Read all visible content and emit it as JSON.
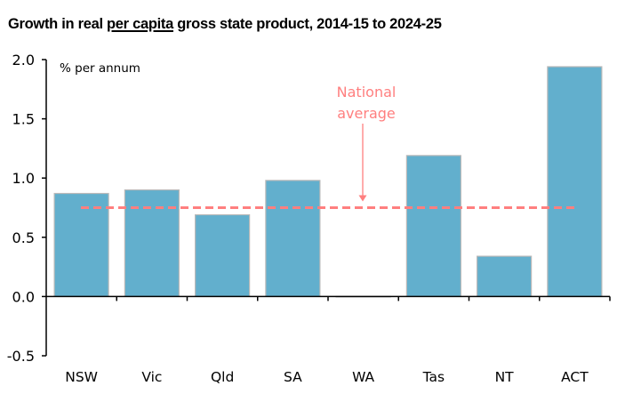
{
  "chart_data": {
    "type": "bar",
    "title_parts": {
      "before": "Growth in real ",
      "underlined": "per capita",
      "after": " gross state product, 2014-15 to 2024-25"
    },
    "title": "Growth in real per capita gross state product, 2014-15 to 2024-25",
    "ylabel": "% per annum",
    "xlabel": "",
    "categories": [
      "NSW",
      "Vic",
      "Qld",
      "SA",
      "WA",
      "Tas",
      "NT",
      "ACT"
    ],
    "values": [
      0.87,
      0.9,
      0.69,
      0.98,
      0.0,
      1.19,
      0.34,
      1.94
    ],
    "ylim": [
      -0.5,
      2.0
    ],
    "yticks": [
      2.0,
      1.5,
      1.0,
      0.5,
      0.0,
      -0.5
    ],
    "ytick_labels": [
      "2.0",
      "1.5",
      "1.0",
      "0.5",
      "0.0",
      "-0.5"
    ],
    "grid": false,
    "reference_line": {
      "name": "National average",
      "value": 0.75,
      "style": "dashed",
      "annotation_lines": [
        "National",
        "average"
      ]
    },
    "colors": {
      "bar": "#62afcd",
      "bar_border": "#b8b8b8",
      "reference": "#ff7f7f",
      "axis": "#000000"
    }
  }
}
